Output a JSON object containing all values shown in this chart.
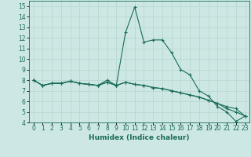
{
  "xlabel": "Humidex (Indice chaleur)",
  "background_color": "#cde8e4",
  "grid_color": "#b8d8d2",
  "line_color": "#1a6b5a",
  "x_values": [
    0,
    1,
    2,
    3,
    4,
    5,
    6,
    7,
    8,
    9,
    10,
    11,
    12,
    13,
    14,
    15,
    16,
    17,
    18,
    19,
    20,
    21,
    22,
    23
  ],
  "series": [
    [
      8.0,
      7.5,
      7.7,
      7.7,
      7.9,
      7.7,
      7.6,
      7.5,
      8.0,
      7.5,
      12.5,
      14.9,
      11.6,
      11.8,
      11.8,
      10.6,
      9.0,
      8.5,
      7.0,
      6.5,
      5.5,
      5.0,
      4.1,
      4.6
    ],
    [
      8.0,
      7.5,
      7.7,
      7.7,
      7.9,
      7.7,
      7.6,
      7.5,
      7.8,
      7.5,
      7.8,
      7.6,
      7.5,
      7.3,
      7.2,
      7.0,
      6.8,
      6.6,
      6.4,
      6.1,
      5.8,
      5.5,
      5.3,
      4.6
    ],
    [
      8.0,
      7.5,
      7.7,
      7.7,
      7.9,
      7.7,
      7.6,
      7.5,
      7.8,
      7.5,
      7.8,
      7.6,
      7.5,
      7.3,
      7.2,
      7.0,
      6.8,
      6.6,
      6.4,
      6.1,
      5.8,
      5.3,
      5.0,
      4.6
    ]
  ],
  "ylim": [
    4,
    15.5
  ],
  "xlim": [
    -0.5,
    23.5
  ],
  "yticks": [
    4,
    5,
    6,
    7,
    8,
    9,
    10,
    11,
    12,
    13,
    14,
    15
  ],
  "xticks": [
    0,
    1,
    2,
    3,
    4,
    5,
    6,
    7,
    8,
    9,
    10,
    11,
    12,
    13,
    14,
    15,
    16,
    17,
    18,
    19,
    20,
    21,
    22,
    23
  ],
  "tick_fontsize": 5.5,
  "xlabel_fontsize": 6.5
}
